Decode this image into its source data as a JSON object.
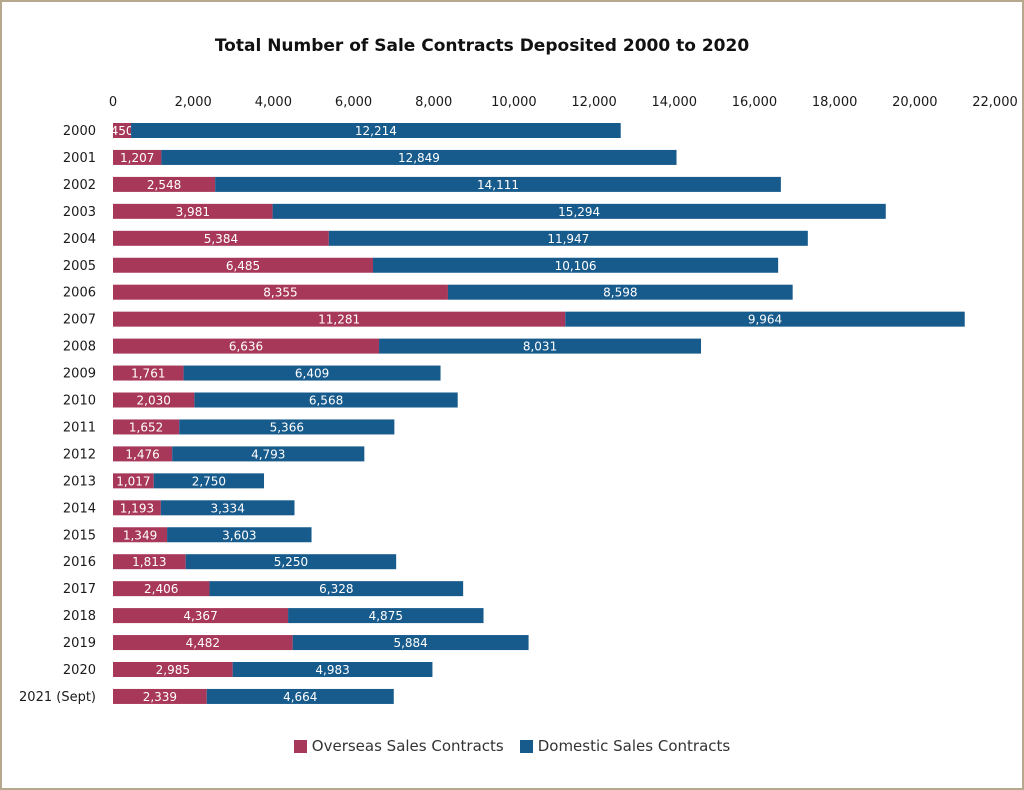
{
  "chart_data": {
    "type": "bar",
    "orientation": "horizontal",
    "stacked": true,
    "title": "Total Number of Sale Contracts Deposited 2000 to 2020",
    "xlabel": "",
    "ylabel": "",
    "xlim": [
      0,
      22000
    ],
    "x_ticks": [
      0,
      2000,
      4000,
      6000,
      8000,
      10000,
      12000,
      14000,
      16000,
      18000,
      20000,
      22000
    ],
    "x_tick_labels": [
      "0",
      "2,000",
      "4,000",
      "6,000",
      "8,000",
      "10,000",
      "12,000",
      "14,000",
      "16,000",
      "18,000",
      "20,000",
      "22,000"
    ],
    "x_axis_position": "top",
    "grid": false,
    "legend_position": "bottom",
    "categories": [
      "2000",
      "2001",
      "2002",
      "2003",
      "2004",
      "2005",
      "2006",
      "2007",
      "2008",
      "2009",
      "2010",
      "2011",
      "2012",
      "2013",
      "2014",
      "2015",
      "2016",
      "2017",
      "2018",
      "2019",
      "2020",
      "2021 (Sept)"
    ],
    "series": [
      {
        "name": "Overseas Sales Contracts",
        "color": "#a8385a",
        "values": [
          450,
          1207,
          2548,
          3981,
          5384,
          6485,
          8355,
          11281,
          6636,
          1761,
          2030,
          1652,
          1476,
          1017,
          1193,
          1349,
          1813,
          2406,
          4367,
          4482,
          2985,
          2339
        ],
        "labels": [
          "450",
          "1,207",
          "2,548",
          "3,981",
          "5,384",
          "6,485",
          "8,355",
          "11,281",
          "6,636",
          "1,761",
          "2,030",
          "1,652",
          "1,476",
          "1,017",
          "1,193",
          "1,349",
          "1,813",
          "2,406",
          "4,367",
          "4,482",
          "2,985",
          "2,339"
        ]
      },
      {
        "name": "Domestic Sales Contracts",
        "color": "#175a8c",
        "values": [
          12214,
          12849,
          14111,
          15294,
          11947,
          10106,
          8598,
          9964,
          8031,
          6409,
          6568,
          5366,
          4793,
          2750,
          3334,
          3603,
          5250,
          6328,
          4875,
          5884,
          4983,
          4664
        ],
        "labels": [
          "12,214",
          "12,849",
          "14,111",
          "15,294",
          "11,947",
          "10,106",
          "8,598",
          "9,964",
          "8,031",
          "6,409",
          "6,568",
          "5,366",
          "4,793",
          "2,750",
          "3,334",
          "3,603",
          "5,250",
          "6,328",
          "4,875",
          "5,884",
          "4,983",
          "4,664"
        ]
      }
    ]
  }
}
